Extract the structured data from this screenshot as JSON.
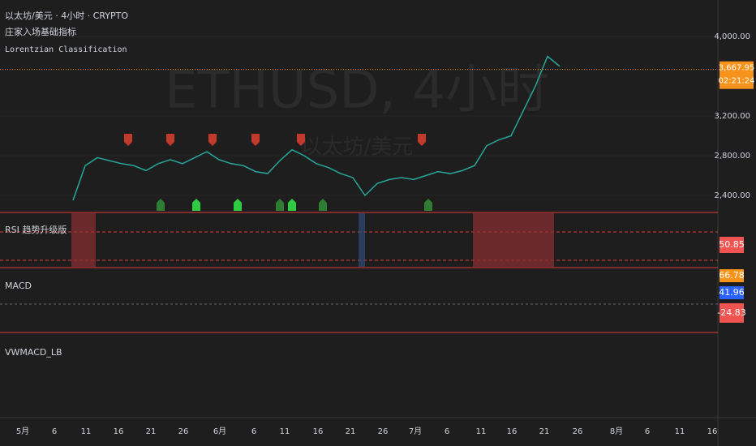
{
  "header": {
    "symbol_line": "以太坊/美元 · 4小时 · CRYPTO",
    "indicator_1": "庄家入场基础指标",
    "indicator_2": "Lorentzian Classification"
  },
  "watermark": {
    "line_1": "ETHUSD, 4小时",
    "line_2": "以太坊/美元"
  },
  "price_axis": {
    "ticks": [
      {
        "value": 4000,
        "label": "4,000.00"
      },
      {
        "value": 3200,
        "label": "3,200.00"
      },
      {
        "value": 2800,
        "label": "2,800.00"
      },
      {
        "value": 2400,
        "label": "2,400.00"
      }
    ],
    "current": {
      "value": 3667.95,
      "label": "3,667.95"
    },
    "countdown": "02:21:24"
  },
  "price": {
    "values": [
      2350,
      2700,
      2780,
      2750,
      2720,
      2700,
      2650,
      2720,
      2760,
      2720,
      2780,
      2840,
      2760,
      2720,
      2700,
      2640,
      2620,
      2750,
      2860,
      2800,
      2720,
      2680,
      2620,
      2580,
      2400,
      2520,
      2560,
      2580,
      2560,
      2600,
      2640,
      2620,
      2650,
      2700,
      2900,
      2960,
      3000,
      3250,
      3500,
      3800,
      3700
    ]
  },
  "panes": {
    "rsi": {
      "label": "RSI 趋势升级版",
      "value": "50.85"
    },
    "macd": {
      "label": "MACD",
      "values": [
        "66.78",
        "41.96",
        "-24.83"
      ]
    },
    "vwmacd": {
      "label": "VWMACD_LB"
    }
  },
  "time_axis": {
    "labels": [
      "5月",
      "6",
      "11",
      "16",
      "21",
      "26",
      "6月",
      "6",
      "11",
      "16",
      "21",
      "26",
      "7月",
      "6",
      "11",
      "16",
      "21",
      "26",
      "8月",
      "6",
      "11",
      "16"
    ]
  }
}
